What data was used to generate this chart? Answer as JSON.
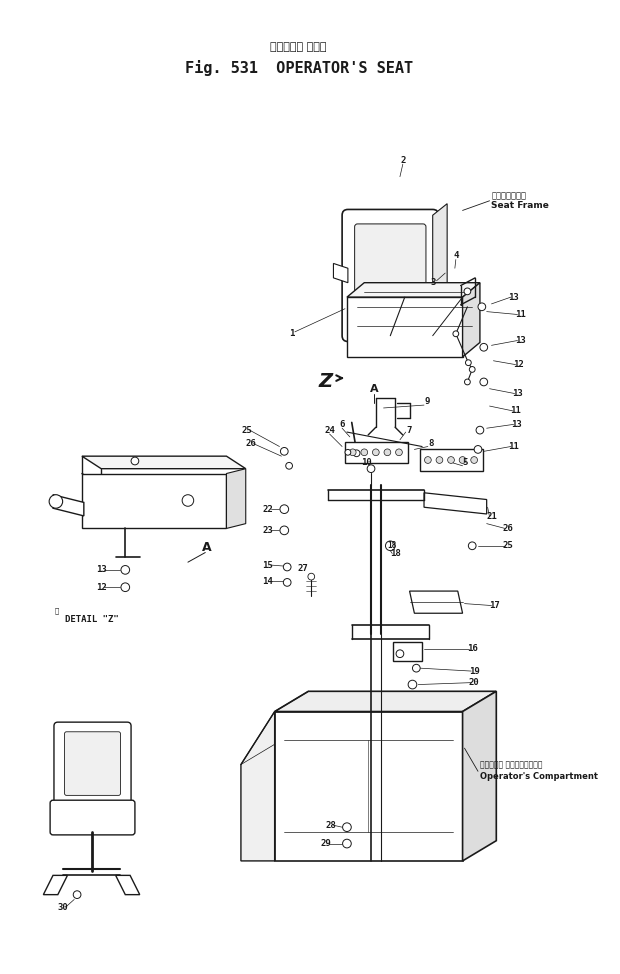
{
  "title_jp": "オペレータ シート",
  "title_en": "Fig. 531  OPERATOR'S SEAT",
  "bg": "#ffffff",
  "lc": "#1a1a1a",
  "seat_frame_jp": "シートフレーム",
  "seat_frame_en": "Seat Frame",
  "detail_z_label": "DETAIL \"Z\"",
  "detail_z_kanji": "詳",
  "oc_jp": "オペレータ コンパートメント",
  "oc_en": "Operator's Compartment"
}
